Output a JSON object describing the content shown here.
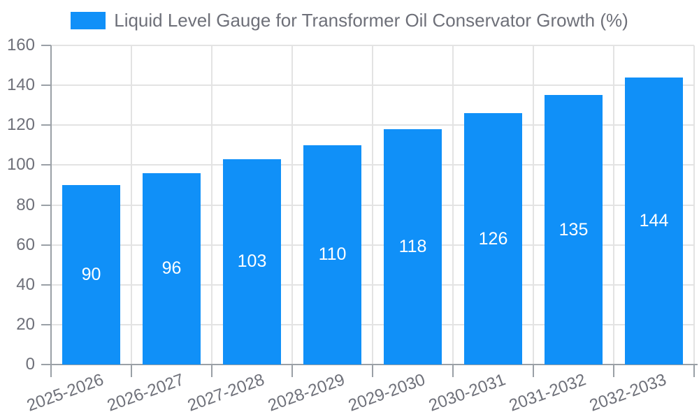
{
  "chart_data": {
    "type": "bar",
    "title": "Liquid Level Gauge for Transformer Oil Conservator Growth (%)",
    "categories": [
      "2025-2026",
      "2026-2027",
      "2027-2028",
      "2028-2029",
      "2029-2030",
      "2030-2031",
      "2031-2032",
      "2032-2033"
    ],
    "values": [
      90,
      96,
      103,
      110,
      118,
      126,
      135,
      144
    ],
    "value_labels": [
      "90",
      "96",
      "103",
      "110",
      "118",
      "126",
      "135",
      "144"
    ],
    "xlabel": "",
    "ylabel": "",
    "ylim": [
      0,
      160
    ],
    "yticks": [
      0,
      20,
      40,
      60,
      80,
      100,
      120,
      140,
      160
    ],
    "grid": "on",
    "legend_position": "top-center",
    "x_label_rotation_deg": -20,
    "colors": {
      "bar": "#1090f8",
      "value_label": "#ffffff",
      "axis_text": "#6e7079",
      "grid_line": "#e3e3e3",
      "axis_line": "#9aa0a6",
      "background": "#ffffff"
    }
  }
}
